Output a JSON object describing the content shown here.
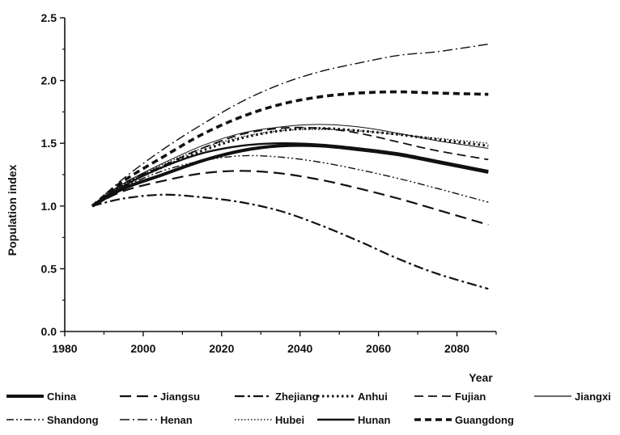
{
  "chart_data": {
    "type": "line",
    "title": "",
    "xlabel": "Year",
    "ylabel": "Population index",
    "xlim": [
      1980,
      2090
    ],
    "ylim": [
      0,
      2.5
    ],
    "xticks": [
      1980,
      2000,
      2020,
      2040,
      2060,
      2080
    ],
    "yticks": [
      "0.0",
      "0.5",
      "1.0",
      "1.5",
      "2.0",
      "2.5"
    ],
    "grid": false,
    "legend_position": "bottom",
    "x": [
      1987,
      1995,
      2005,
      2015,
      2025,
      2035,
      2045,
      2055,
      2065,
      2075,
      2088
    ],
    "series": [
      {
        "name": "China",
        "style": "solid-thick",
        "values": [
          1.0,
          1.14,
          1.25,
          1.36,
          1.44,
          1.48,
          1.48,
          1.45,
          1.41,
          1.35,
          1.27
        ]
      },
      {
        "name": "Jiangsu",
        "style": "longdash",
        "values": [
          1.0,
          1.12,
          1.2,
          1.26,
          1.28,
          1.26,
          1.21,
          1.14,
          1.06,
          0.97,
          0.85
        ]
      },
      {
        "name": "Zhejiang",
        "style": "dashdot",
        "values": [
          1.0,
          1.06,
          1.09,
          1.07,
          1.03,
          0.96,
          0.85,
          0.72,
          0.58,
          0.46,
          0.34
        ]
      },
      {
        "name": "Anhui",
        "style": "dotted-bold",
        "values": [
          1.0,
          1.17,
          1.31,
          1.44,
          1.54,
          1.6,
          1.62,
          1.6,
          1.57,
          1.53,
          1.48
        ]
      },
      {
        "name": "Fujian",
        "style": "dash",
        "values": [
          1.0,
          1.18,
          1.32,
          1.46,
          1.57,
          1.62,
          1.62,
          1.58,
          1.51,
          1.44,
          1.37
        ]
      },
      {
        "name": "Jiangxi",
        "style": "solid-thin",
        "values": [
          1.0,
          1.18,
          1.34,
          1.48,
          1.58,
          1.63,
          1.65,
          1.63,
          1.58,
          1.52,
          1.46
        ]
      },
      {
        "name": "Shandong",
        "style": "dashdotdot",
        "values": [
          1.0,
          1.15,
          1.28,
          1.36,
          1.4,
          1.39,
          1.35,
          1.29,
          1.22,
          1.14,
          1.03
        ]
      },
      {
        "name": "Henan",
        "style": "dashdot-thin",
        "values": [
          1.0,
          1.22,
          1.45,
          1.65,
          1.83,
          1.97,
          2.07,
          2.14,
          2.2,
          2.23,
          2.29
        ]
      },
      {
        "name": "Hubei",
        "style": "dotted-thin",
        "values": [
          1.0,
          1.17,
          1.33,
          1.46,
          1.55,
          1.6,
          1.61,
          1.6,
          1.57,
          1.54,
          1.5
        ]
      },
      {
        "name": "Hunan",
        "style": "solid",
        "values": [
          1.0,
          1.16,
          1.31,
          1.42,
          1.48,
          1.5,
          1.49,
          1.46,
          1.42,
          1.36,
          1.28
        ]
      },
      {
        "name": "Guangdong",
        "style": "heavydash",
        "values": [
          1.0,
          1.2,
          1.39,
          1.57,
          1.71,
          1.81,
          1.87,
          1.9,
          1.91,
          1.9,
          1.89
        ]
      }
    ]
  }
}
